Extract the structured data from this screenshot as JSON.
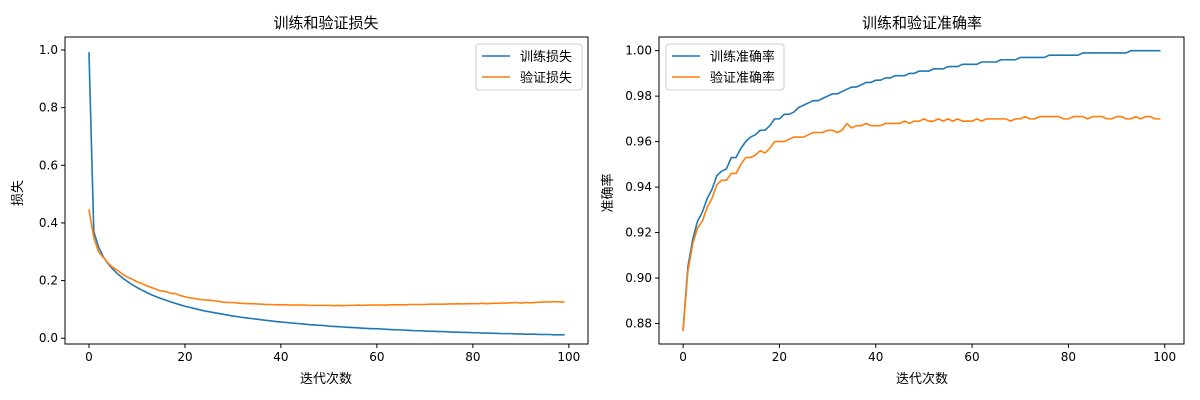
{
  "chart_data": [
    {
      "type": "line",
      "title": "训练和验证损失",
      "xlabel": "迭代次数",
      "ylabel": "损失",
      "xlim": [
        -5,
        104
      ],
      "ylim": [
        -0.02,
        1.045
      ],
      "x_ticks": [
        0,
        20,
        40,
        60,
        80,
        100
      ],
      "y_ticks": [
        0.0,
        0.2,
        0.4,
        0.6,
        0.8,
        1.0
      ],
      "y_tick_labels": [
        "0.0",
        "0.2",
        "0.4",
        "0.6",
        "0.8",
        "1.0"
      ],
      "grid": false,
      "legend_position": "top-right",
      "x": [
        0,
        1,
        2,
        3,
        4,
        5,
        6,
        7,
        8,
        9,
        10,
        11,
        12,
        13,
        14,
        15,
        16,
        17,
        18,
        19,
        20,
        21,
        22,
        23,
        24,
        25,
        26,
        27,
        28,
        29,
        30,
        31,
        32,
        33,
        34,
        35,
        36,
        37,
        38,
        39,
        40,
        41,
        42,
        43,
        44,
        45,
        46,
        47,
        48,
        49,
        50,
        51,
        52,
        53,
        54,
        55,
        56,
        57,
        58,
        59,
        60,
        61,
        62,
        63,
        64,
        65,
        66,
        67,
        68,
        69,
        70,
        71,
        72,
        73,
        74,
        75,
        76,
        77,
        78,
        79,
        80,
        81,
        82,
        83,
        84,
        85,
        86,
        87,
        88,
        89,
        90,
        91,
        92,
        93,
        94,
        95,
        96,
        97,
        98,
        99
      ],
      "series": [
        {
          "name": "训练损失",
          "color": "#1f77b4",
          "values": [
            0.99,
            0.37,
            0.316,
            0.282,
            0.258,
            0.239,
            0.223,
            0.209,
            0.197,
            0.186,
            0.176,
            0.167,
            0.159,
            0.151,
            0.144,
            0.138,
            0.132,
            0.126,
            0.121,
            0.116,
            0.111,
            0.107,
            0.103,
            0.099,
            0.095,
            0.092,
            0.089,
            0.086,
            0.083,
            0.08,
            0.077,
            0.075,
            0.072,
            0.07,
            0.068,
            0.066,
            0.064,
            0.062,
            0.06,
            0.058,
            0.056,
            0.055,
            0.053,
            0.052,
            0.05,
            0.049,
            0.047,
            0.046,
            0.045,
            0.044,
            0.042,
            0.041,
            0.04,
            0.039,
            0.038,
            0.037,
            0.036,
            0.035,
            0.034,
            0.033,
            0.033,
            0.032,
            0.031,
            0.03,
            0.029,
            0.029,
            0.028,
            0.027,
            0.026,
            0.026,
            0.025,
            0.024,
            0.024,
            0.023,
            0.023,
            0.022,
            0.021,
            0.021,
            0.02,
            0.02,
            0.019,
            0.019,
            0.018,
            0.018,
            0.017,
            0.017,
            0.016,
            0.016,
            0.016,
            0.015,
            0.015,
            0.014,
            0.014,
            0.014,
            0.013,
            0.013,
            0.013,
            0.012,
            0.012,
            0.012
          ]
        },
        {
          "name": "验证损失",
          "color": "#ff7f0e",
          "values": [
            0.445,
            0.35,
            0.3,
            0.28,
            0.26,
            0.245,
            0.235,
            0.222,
            0.212,
            0.205,
            0.196,
            0.19,
            0.182,
            0.176,
            0.17,
            0.164,
            0.162,
            0.156,
            0.155,
            0.148,
            0.144,
            0.14,
            0.138,
            0.135,
            0.133,
            0.132,
            0.13,
            0.128,
            0.125,
            0.124,
            0.124,
            0.122,
            0.121,
            0.12,
            0.12,
            0.119,
            0.118,
            0.117,
            0.117,
            0.116,
            0.116,
            0.116,
            0.115,
            0.115,
            0.115,
            0.115,
            0.114,
            0.114,
            0.114,
            0.114,
            0.114,
            0.113,
            0.114,
            0.113,
            0.114,
            0.114,
            0.115,
            0.114,
            0.115,
            0.115,
            0.115,
            0.115,
            0.115,
            0.116,
            0.116,
            0.116,
            0.116,
            0.117,
            0.117,
            0.117,
            0.117,
            0.118,
            0.118,
            0.118,
            0.118,
            0.119,
            0.119,
            0.12,
            0.119,
            0.12,
            0.12,
            0.12,
            0.121,
            0.12,
            0.121,
            0.121,
            0.122,
            0.122,
            0.123,
            0.124,
            0.122,
            0.124,
            0.123,
            0.124,
            0.125,
            0.126,
            0.126,
            0.127,
            0.126,
            0.126
          ]
        }
      ]
    },
    {
      "type": "line",
      "title": "训练和验证准确率",
      "xlabel": "迭代次数",
      "ylabel": "准确率",
      "xlim": [
        -5,
        104
      ],
      "ylim": [
        0.871,
        1.006
      ],
      "x_ticks": [
        0,
        20,
        40,
        60,
        80,
        100
      ],
      "y_ticks": [
        0.88,
        0.9,
        0.92,
        0.94,
        0.96,
        0.98,
        1.0
      ],
      "y_tick_labels": [
        "0.88",
        "0.90",
        "0.92",
        "0.94",
        "0.96",
        "0.98",
        "1.00"
      ],
      "grid": false,
      "legend_position": "top-left",
      "x": [
        0,
        1,
        2,
        3,
        4,
        5,
        6,
        7,
        8,
        9,
        10,
        11,
        12,
        13,
        14,
        15,
        16,
        17,
        18,
        19,
        20,
        21,
        22,
        23,
        24,
        25,
        26,
        27,
        28,
        29,
        30,
        31,
        32,
        33,
        34,
        35,
        36,
        37,
        38,
        39,
        40,
        41,
        42,
        43,
        44,
        45,
        46,
        47,
        48,
        49,
        50,
        51,
        52,
        53,
        54,
        55,
        56,
        57,
        58,
        59,
        60,
        61,
        62,
        63,
        64,
        65,
        66,
        67,
        68,
        69,
        70,
        71,
        72,
        73,
        74,
        75,
        76,
        77,
        78,
        79,
        80,
        81,
        82,
        83,
        84,
        85,
        86,
        87,
        88,
        89,
        90,
        91,
        92,
        93,
        94,
        95,
        96,
        97,
        98,
        99
      ],
      "series": [
        {
          "name": "训练准确率",
          "color": "#1f77b4",
          "values": [
            0.877,
            0.905,
            0.917,
            0.925,
            0.929,
            0.935,
            0.939,
            0.945,
            0.947,
            0.948,
            0.953,
            0.953,
            0.957,
            0.96,
            0.962,
            0.963,
            0.965,
            0.965,
            0.967,
            0.97,
            0.97,
            0.972,
            0.972,
            0.973,
            0.975,
            0.976,
            0.977,
            0.978,
            0.978,
            0.979,
            0.98,
            0.981,
            0.981,
            0.982,
            0.983,
            0.984,
            0.984,
            0.985,
            0.986,
            0.986,
            0.987,
            0.987,
            0.988,
            0.988,
            0.989,
            0.989,
            0.989,
            0.99,
            0.99,
            0.991,
            0.991,
            0.991,
            0.992,
            0.992,
            0.992,
            0.993,
            0.993,
            0.993,
            0.994,
            0.994,
            0.994,
            0.994,
            0.995,
            0.995,
            0.995,
            0.995,
            0.996,
            0.996,
            0.996,
            0.996,
            0.997,
            0.997,
            0.997,
            0.997,
            0.997,
            0.997,
            0.998,
            0.998,
            0.998,
            0.998,
            0.998,
            0.998,
            0.998,
            0.999,
            0.999,
            0.999,
            0.999,
            0.999,
            0.999,
            0.999,
            0.999,
            0.999,
            0.999,
            1.0,
            1.0,
            1.0,
            1.0,
            1.0,
            1.0,
            1.0
          ]
        },
        {
          "name": "验证准确率",
          "color": "#ff7f0e",
          "values": [
            0.877,
            0.903,
            0.915,
            0.922,
            0.925,
            0.931,
            0.935,
            0.941,
            0.943,
            0.943,
            0.946,
            0.946,
            0.95,
            0.953,
            0.953,
            0.954,
            0.956,
            0.955,
            0.957,
            0.96,
            0.96,
            0.96,
            0.961,
            0.962,
            0.962,
            0.962,
            0.963,
            0.964,
            0.964,
            0.964,
            0.965,
            0.965,
            0.964,
            0.965,
            0.968,
            0.966,
            0.967,
            0.967,
            0.968,
            0.967,
            0.967,
            0.967,
            0.968,
            0.968,
            0.968,
            0.968,
            0.969,
            0.968,
            0.969,
            0.969,
            0.97,
            0.969,
            0.969,
            0.97,
            0.969,
            0.97,
            0.969,
            0.97,
            0.969,
            0.969,
            0.969,
            0.97,
            0.969,
            0.97,
            0.97,
            0.97,
            0.97,
            0.97,
            0.969,
            0.97,
            0.97,
            0.971,
            0.97,
            0.97,
            0.971,
            0.971,
            0.971,
            0.971,
            0.971,
            0.97,
            0.97,
            0.971,
            0.971,
            0.971,
            0.97,
            0.971,
            0.971,
            0.971,
            0.97,
            0.97,
            0.971,
            0.971,
            0.97,
            0.97,
            0.971,
            0.97,
            0.971,
            0.971,
            0.97,
            0.97
          ]
        }
      ]
    }
  ]
}
